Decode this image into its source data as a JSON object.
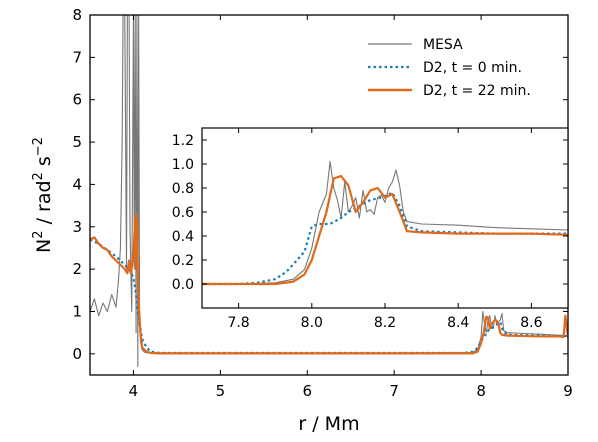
{
  "chart_data": [
    {
      "type": "line",
      "xlabel": "r / Mm",
      "ylabel_base": "N",
      "ylabel_sup": "2",
      "ylabel_mid": " / rad",
      "ylabel_sup2": "2",
      "ylabel_unit": " s",
      "ylabel_sup3": "−2",
      "xlim": [
        3.5,
        9.0
      ],
      "ylim": [
        -0.5,
        8.0
      ],
      "xticks": [
        4,
        5,
        6,
        7,
        8,
        9
      ],
      "xtick_labels": [
        "4",
        "5",
        "6",
        "7",
        "8",
        "9"
      ],
      "yticks": [
        0,
        1,
        2,
        3,
        4,
        5,
        6,
        7,
        8
      ],
      "ytick_labels": [
        "0",
        "1",
        "2",
        "3",
        "4",
        "5",
        "6",
        "7",
        "8"
      ],
      "legend": {
        "placement": "top-right",
        "entries": [
          {
            "label": "MESA",
            "color": "#777777",
            "style": "solid"
          },
          {
            "label": "D2, t = 0 min.",
            "color": "#1f7bb4",
            "style": "dotted"
          },
          {
            "label": "D2, t = 22 min.",
            "color": "#e06a1a",
            "style": "solid"
          }
        ]
      },
      "series": [
        {
          "name": "MESA",
          "color": "#777777",
          "style": "solid",
          "x": [
            3.5,
            3.55,
            3.6,
            3.65,
            3.7,
            3.75,
            3.8,
            3.83,
            3.85,
            3.87,
            3.88,
            3.9,
            3.92,
            3.93,
            3.95,
            3.96,
            3.98,
            4.0,
            4.01,
            4.02,
            4.03,
            4.04,
            4.05,
            4.06,
            4.07,
            4.08,
            4.1,
            4.12,
            4.15,
            4.2,
            5.0,
            6.0,
            7.0,
            7.9,
            7.96,
            8.0,
            8.02,
            8.04,
            8.06,
            8.08,
            8.1,
            8.12,
            8.14,
            8.16,
            8.18,
            8.2,
            8.22,
            8.24,
            8.26,
            8.3,
            8.5,
            8.7,
            8.8,
            8.9,
            9.0
          ],
          "y": [
            1.0,
            1.3,
            0.9,
            1.2,
            1.0,
            1.4,
            1.1,
            1.8,
            2.5,
            5.0,
            8.0,
            8.0,
            2.0,
            8.0,
            8.0,
            3.0,
            1.0,
            8.0,
            2.0,
            8.0,
            0.5,
            8.0,
            -0.3,
            8.0,
            1.0,
            0.3,
            0.1,
            0.05,
            0.02,
            0.02,
            0.02,
            0.02,
            0.02,
            0.03,
            0.1,
            0.4,
            1.0,
            0.7,
            0.5,
            0.8,
            0.9,
            0.6,
            0.6,
            0.9,
            0.7,
            0.75,
            0.8,
            0.95,
            0.55,
            0.5,
            0.48,
            0.46,
            0.45,
            0.44,
            0.43
          ]
        },
        {
          "name": "D2, t = 0 min.",
          "color": "#1f7bb4",
          "style": "dotted",
          "x": [
            3.5,
            3.6,
            3.7,
            3.8,
            3.85,
            3.9,
            3.95,
            4.0,
            4.03,
            4.05,
            4.08,
            4.1,
            4.15,
            4.2,
            4.3,
            5.0,
            6.0,
            7.0,
            7.8,
            7.9,
            7.95,
            7.98,
            8.0,
            8.05,
            8.1,
            8.15,
            8.2,
            8.22,
            8.25,
            8.3,
            8.5,
            8.7,
            8.8,
            8.9,
            9.0
          ],
          "y": [
            2.7,
            2.6,
            2.45,
            2.3,
            2.2,
            2.1,
            2.0,
            1.8,
            1.4,
            1.0,
            0.6,
            0.35,
            0.15,
            0.05,
            0.02,
            0.02,
            0.02,
            0.02,
            0.02,
            0.05,
            0.12,
            0.22,
            0.3,
            0.45,
            0.6,
            0.65,
            0.72,
            0.75,
            0.55,
            0.45,
            0.44,
            0.43,
            0.42,
            0.42,
            0.42
          ]
        },
        {
          "name": "D2, t = 22 min.",
          "color": "#e06a1a",
          "style": "solid",
          "x": [
            3.5,
            3.55,
            3.6,
            3.65,
            3.7,
            3.75,
            3.8,
            3.85,
            3.9,
            3.93,
            3.95,
            3.97,
            4.0,
            4.02,
            4.03,
            4.04,
            4.05,
            4.06,
            4.08,
            4.1,
            4.15,
            4.2,
            4.3,
            5.0,
            6.0,
            7.0,
            7.9,
            7.96,
            8.0,
            8.03,
            8.06,
            8.08,
            8.1,
            8.12,
            8.14,
            8.16,
            8.18,
            8.2,
            8.22,
            8.24,
            8.3,
            8.5,
            8.7,
            8.8,
            8.9,
            8.95,
            8.97,
            9.0
          ],
          "y": [
            2.7,
            2.75,
            2.6,
            2.5,
            2.45,
            2.3,
            2.2,
            2.1,
            2.0,
            1.9,
            2.2,
            1.9,
            2.3,
            3.2,
            2.0,
            3.3,
            2.0,
            1.2,
            0.5,
            0.15,
            0.05,
            0.02,
            0.01,
            0.01,
            0.01,
            0.01,
            0.01,
            0.05,
            0.25,
            0.5,
            0.88,
            0.85,
            0.6,
            0.7,
            0.75,
            0.8,
            0.78,
            0.7,
            0.5,
            0.45,
            0.43,
            0.42,
            0.41,
            0.41,
            0.41,
            0.4,
            0.9,
            0.4
          ]
        }
      ]
    },
    {
      "type": "line",
      "role": "inset",
      "xlim": [
        7.7,
        8.7
      ],
      "ylim": [
        -0.2,
        1.3
      ],
      "xticks": [
        7.8,
        8.0,
        8.2,
        8.4,
        8.6
      ],
      "xtick_labels": [
        "7.8",
        "8.0",
        "8.2",
        "8.4",
        "8.6"
      ],
      "yticks": [
        0.0,
        0.2,
        0.4,
        0.6,
        0.8,
        1.0,
        1.2
      ],
      "ytick_labels": [
        "0.0",
        "0.2",
        "0.4",
        "0.6",
        "0.8",
        "1.0",
        "1.2"
      ],
      "series": [
        {
          "name": "MESA",
          "color": "#777777",
          "style": "solid",
          "x": [
            7.7,
            7.8,
            7.9,
            7.95,
            7.98,
            8.0,
            8.02,
            8.04,
            8.05,
            8.06,
            8.07,
            8.08,
            8.09,
            8.1,
            8.11,
            8.12,
            8.13,
            8.14,
            8.15,
            8.16,
            8.17,
            8.18,
            8.19,
            8.2,
            8.21,
            8.22,
            8.23,
            8.24,
            8.25,
            8.26,
            8.3,
            8.4,
            8.5,
            8.6,
            8.7
          ],
          "y": [
            0.0,
            0.0,
            0.01,
            0.04,
            0.12,
            0.3,
            0.6,
            0.75,
            1.02,
            0.8,
            0.7,
            0.55,
            0.85,
            0.6,
            0.65,
            0.72,
            0.55,
            0.78,
            0.6,
            0.62,
            0.58,
            0.72,
            0.74,
            0.68,
            0.8,
            0.85,
            0.95,
            0.82,
            0.6,
            0.52,
            0.5,
            0.49,
            0.47,
            0.46,
            0.45
          ]
        },
        {
          "name": "D2, t = 0 min.",
          "color": "#1f7bb4",
          "style": "dotted",
          "x": [
            7.7,
            7.8,
            7.85,
            7.9,
            7.93,
            7.96,
            7.98,
            8.0,
            8.02,
            8.05,
            8.08,
            8.1,
            8.13,
            8.16,
            8.19,
            8.22,
            8.24,
            8.26,
            8.3,
            8.4,
            8.5,
            8.6,
            8.7
          ],
          "y": [
            0.0,
            0.0,
            0.01,
            0.04,
            0.1,
            0.2,
            0.27,
            0.48,
            0.5,
            0.5,
            0.55,
            0.6,
            0.65,
            0.7,
            0.72,
            0.76,
            0.65,
            0.48,
            0.44,
            0.43,
            0.42,
            0.42,
            0.42
          ]
        },
        {
          "name": "D2, t = 22 min.",
          "color": "#e06a1a",
          "style": "solid",
          "x": [
            7.7,
            7.8,
            7.9,
            7.95,
            7.98,
            8.0,
            8.02,
            8.04,
            8.06,
            8.08,
            8.1,
            8.12,
            8.14,
            8.16,
            8.18,
            8.2,
            8.22,
            8.24,
            8.26,
            8.3,
            8.4,
            8.5,
            8.6,
            8.7
          ],
          "y": [
            0.0,
            0.0,
            0.0,
            0.02,
            0.08,
            0.2,
            0.4,
            0.6,
            0.88,
            0.9,
            0.82,
            0.6,
            0.68,
            0.78,
            0.8,
            0.72,
            0.75,
            0.6,
            0.44,
            0.43,
            0.42,
            0.42,
            0.42,
            0.41
          ]
        }
      ]
    }
  ]
}
